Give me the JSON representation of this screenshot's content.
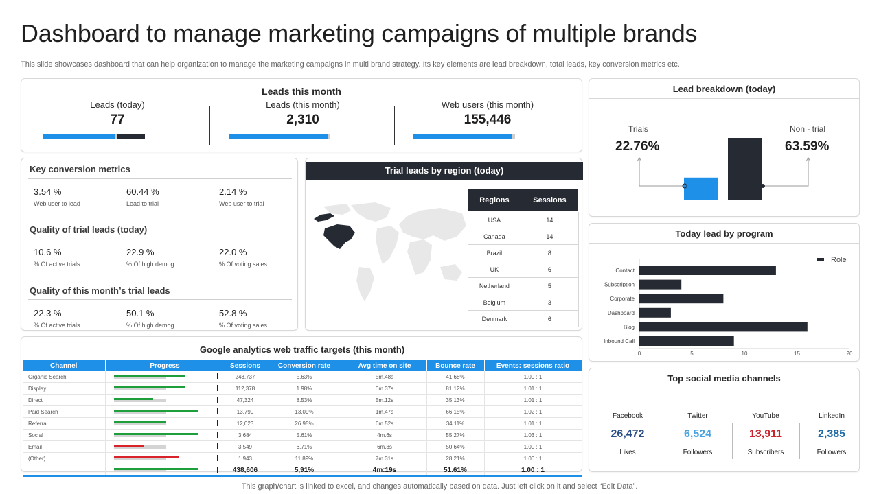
{
  "header": {
    "title": "Dashboard to manage marketing campaigns of multiple brands",
    "subtitle": "This slide showcases dashboard that can help organization to manage the marketing campaigns in multi brand strategy. Its key elements are lead breakdown, total leads, key conversion metrics etc."
  },
  "footer": "This graph/chart is linked to excel, and changes automatically based on data. Just left click on it and select “Edit Data”.",
  "leads": {
    "heading": "Leads this month",
    "items": [
      {
        "label": "Leads (today)",
        "value": "77",
        "progress": 0.7
      },
      {
        "label": "Leads (this month)",
        "value": "2,310",
        "progress": 0.97
      },
      {
        "label": "Web users (this month)",
        "value": "155,446",
        "progress": 0.97
      }
    ]
  },
  "conversion": {
    "sections": [
      {
        "title": "Key conversion metrics",
        "metrics": [
          {
            "value": "3.54 %",
            "label": "Web user to lead"
          },
          {
            "value": "60.44 %",
            "label": "Lead to trial"
          },
          {
            "value": "2.14 %",
            "label": "Web user to trial"
          }
        ]
      },
      {
        "title": "Quality of trial leads (today)",
        "metrics": [
          {
            "value": "10.6 %",
            "label": "% Of active trials"
          },
          {
            "value": "22.9 %",
            "label": "% Of high demog…"
          },
          {
            "value": "22.0 %",
            "label": "% Of voting sales"
          }
        ]
      },
      {
        "title": "Quality of this month’s trial leads",
        "metrics": [
          {
            "value": "22.3 %",
            "label": "% Of active trials"
          },
          {
            "value": "50.1 %",
            "label": "% Of high demog…"
          },
          {
            "value": "52.8 %",
            "label": "% Of voting sales"
          }
        ]
      }
    ]
  },
  "region": {
    "title": "Trial leads by region (today)",
    "columns": [
      "Regions",
      "Sessions"
    ],
    "rows": [
      [
        "USA",
        "14"
      ],
      [
        "Canada",
        "14"
      ],
      [
        "Brazil",
        "8"
      ],
      [
        "UK",
        "6"
      ],
      [
        "Netherland",
        "5"
      ],
      [
        "Belgium",
        "3"
      ],
      [
        "Denmark",
        "6"
      ]
    ]
  },
  "analytics": {
    "title": "Google analytics web traffic targets (this month)",
    "columns": [
      "Channel",
      "Progress",
      "Sessions",
      "Conversion rate",
      "Avg time on site",
      "Bounce rate",
      "Events: sessions ratio"
    ],
    "rows": [
      {
        "channel": "Organic Search",
        "progress": 1.36,
        "color": "#1f9e3c",
        "sessions": "243,737",
        "conv": "5.63%",
        "avg": "5m.48s",
        "bounce": "41.68%",
        "ratio": "1.00  :  1"
      },
      {
        "channel": "Display",
        "progress": 1.36,
        "color": "#1f9e3c",
        "sessions": "112,378",
        "conv": "1.98%",
        "avg": "0m.37s",
        "bounce": "81.12%",
        "ratio": "1.01  :  1"
      },
      {
        "channel": "Direct",
        "progress": 0.75,
        "color": "#1f9e3c",
        "sessions": "47,324",
        "conv": "8.53%",
        "avg": "5m.12s",
        "bounce": "35.13%",
        "ratio": "1.01  :  1"
      },
      {
        "channel": "Paid Search",
        "progress": 1.62,
        "color": "#1f9e3c",
        "sessions": "13,790",
        "conv": "13.09%",
        "avg": "1m.47s",
        "bounce": "66.15%",
        "ratio": "1.02  :  1"
      },
      {
        "channel": "Referral",
        "progress": 1.0,
        "color": "#1f9e3c",
        "sessions": "12,023",
        "conv": "26.95%",
        "avg": "6m.52s",
        "bounce": "34.11%",
        "ratio": "1.01  :  1"
      },
      {
        "channel": "Social",
        "progress": 1.62,
        "color": "#1f9e3c",
        "sessions": "3,684",
        "conv": "5.61%",
        "avg": "4m.6s",
        "bounce": "55.27%",
        "ratio": "1.03  :  1"
      },
      {
        "channel": "Email",
        "progress": 0.58,
        "color": "#d9232a",
        "sessions": "3,549",
        "conv": "6.71%",
        "avg": "6m.3s",
        "bounce": "50.64%",
        "ratio": "1.00  :  1"
      },
      {
        "channel": "(Other)",
        "progress": 1.25,
        "color": "#d9232a",
        "sessions": "1,943",
        "conv": "11.89%",
        "avg": "7m.31s",
        "bounce": "28.21%",
        "ratio": "1.00  :  1"
      }
    ],
    "total": {
      "progress": 1.62,
      "color": "#1f9e3c",
      "sessions": "438,606",
      "conv": "5,91%",
      "avg": "4m:19s",
      "bounce": "51.61%",
      "ratio": "1.00 : 1"
    }
  },
  "breakdown": {
    "title": "Lead breakdown  (today)",
    "trials_label": "Trials",
    "trials_value": "22.76%",
    "nontrial_label": "Non - trial",
    "nontrial_value": "63.59%",
    "bars": [
      {
        "name": "Trials",
        "value": 22.76,
        "color": "#1e90e8"
      },
      {
        "name": "Non - trial",
        "value": 63.59,
        "color": "#262a33"
      }
    ]
  },
  "program": {
    "title": "Today lead by program",
    "chart_data": {
      "type": "bar",
      "orientation": "horizontal",
      "categories": [
        "Contact",
        "Subscription",
        "Corporate",
        "Dashboard",
        "Blog",
        "Inbound Call"
      ],
      "series": [
        {
          "name": "Role",
          "values": [
            13,
            4,
            8,
            3,
            16,
            9
          ]
        }
      ],
      "xlim": [
        0,
        20
      ],
      "xticks": [
        "0",
        "5",
        "10",
        "15",
        "20"
      ],
      "legend": "top-right",
      "color": "#262a33"
    }
  },
  "social": {
    "title": "Top social media channels",
    "channels": [
      {
        "name": "Facebook",
        "value": "26,472",
        "unit": "Likes",
        "color": "#2a4f85"
      },
      {
        "name": "Twitter",
        "value": "6,524",
        "unit": "Followers",
        "color": "#4aa3df"
      },
      {
        "name": "YouTube",
        "value": "13,911",
        "unit": "Subscribers",
        "color": "#c8262e"
      },
      {
        "name": "LinkedIn",
        "value": "2,385",
        "unit": "Followers",
        "color": "#1f6aa5"
      }
    ]
  }
}
